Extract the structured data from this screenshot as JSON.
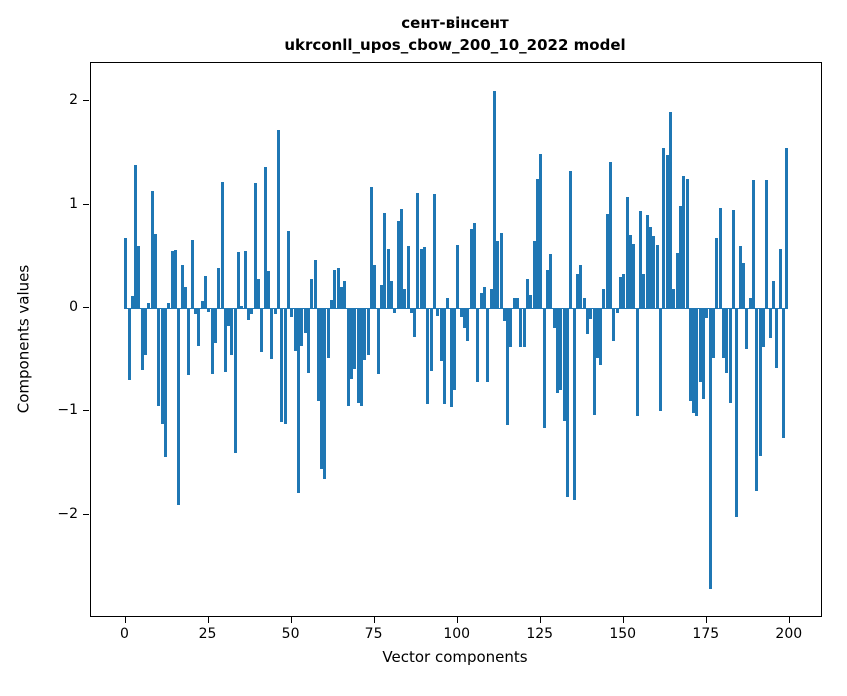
{
  "figure": {
    "background": "#ffffff",
    "text_color": "#000000"
  },
  "chart_data": {
    "type": "bar",
    "title": "сент-вінсент",
    "subtitle": "ukrconll_upos_cbow_200_10_2022 model",
    "xlabel": "Vector components",
    "ylabel": "Components values",
    "bar_color": "#1f77b4",
    "grid": false,
    "legend": null,
    "xlim": [
      -10.39,
      209.39
    ],
    "ylim": [
      -2.98,
      2.37
    ],
    "xticks": [
      0,
      25,
      50,
      75,
      100,
      125,
      150,
      175,
      200
    ],
    "xtick_labels": [
      "0",
      "25",
      "50",
      "75",
      "100",
      "125",
      "150",
      "175",
      "200"
    ],
    "yticks": [
      2,
      1,
      0,
      -1,
      -2
    ],
    "ytick_labels": [
      "2",
      "1",
      "0",
      "−1",
      "−2"
    ],
    "bar_data_width": 0.8,
    "values": [
      0.68,
      -0.7,
      0.12,
      1.38,
      0.6,
      -0.6,
      -0.45,
      0.05,
      1.13,
      0.72,
      -0.95,
      -1.12,
      -1.44,
      0.05,
      0.55,
      0.56,
      -1.91,
      0.42,
      0.2,
      -0.65,
      0.66,
      -0.06,
      -0.37,
      0.07,
      0.31,
      -0.04,
      -0.64,
      -0.34,
      0.39,
      1.22,
      -0.62,
      -0.17,
      -0.45,
      -1.4,
      0.54,
      0.02,
      0.55,
      -0.12,
      -0.06,
      1.21,
      0.28,
      -0.43,
      1.36,
      0.36,
      -0.49,
      -0.06,
      1.72,
      -1.1,
      -1.12,
      0.75,
      -0.09,
      -0.42,
      -1.79,
      -0.37,
      -0.24,
      -0.63,
      0.28,
      0.46,
      -0.9,
      -1.56,
      -1.65,
      -0.48,
      0.08,
      0.37,
      0.39,
      0.2,
      0.26,
      -0.95,
      -0.69,
      -0.59,
      -0.92,
      -0.95,
      -0.5,
      -0.45,
      1.17,
      0.42,
      -0.64,
      0.22,
      0.92,
      0.57,
      0.26,
      -0.05,
      0.84,
      0.96,
      0.18,
      0.6,
      -0.05,
      -0.28,
      1.11,
      0.57,
      0.59,
      -0.93,
      -0.61,
      1.1,
      -0.08,
      -0.51,
      -0.93,
      0.1,
      -0.96,
      -0.79,
      0.61,
      -0.09,
      -0.19,
      -0.32,
      0.76,
      0.82,
      -0.72,
      0.15,
      0.2,
      -0.72,
      0.18,
      2.1,
      0.65,
      0.73,
      -0.13,
      -1.13,
      -0.38,
      0.1,
      0.1,
      -0.38,
      -0.38,
      0.28,
      0.13,
      0.65,
      1.25,
      1.49,
      -1.16,
      0.37,
      0.52,
      -0.19,
      -0.82,
      -0.79,
      -1.09,
      -1.83,
      1.33,
      -1.86,
      0.33,
      0.42,
      0.1,
      -0.25,
      -0.11,
      -1.03,
      -0.48,
      -0.55,
      0.18,
      0.91,
      1.41,
      -0.32,
      -0.05,
      0.3,
      0.33,
      1.07,
      0.71,
      0.62,
      -1.04,
      0.94,
      0.33,
      0.9,
      0.78,
      0.7,
      0.61,
      -1.0,
      1.55,
      1.48,
      1.9,
      0.18,
      0.53,
      0.99,
      1.28,
      1.25,
      -0.9,
      -1.02,
      -1.04,
      -0.72,
      -0.88,
      -0.1,
      -2.72,
      -0.48,
      0.68,
      0.97,
      -0.48,
      -0.63,
      -0.92,
      0.95,
      -2.02,
      0.6,
      0.44,
      -0.4,
      0.1,
      1.24,
      -1.77,
      -1.43,
      -0.38,
      1.24,
      -0.29,
      0.26,
      -0.58,
      0.57,
      -1.26,
      1.55
    ]
  }
}
